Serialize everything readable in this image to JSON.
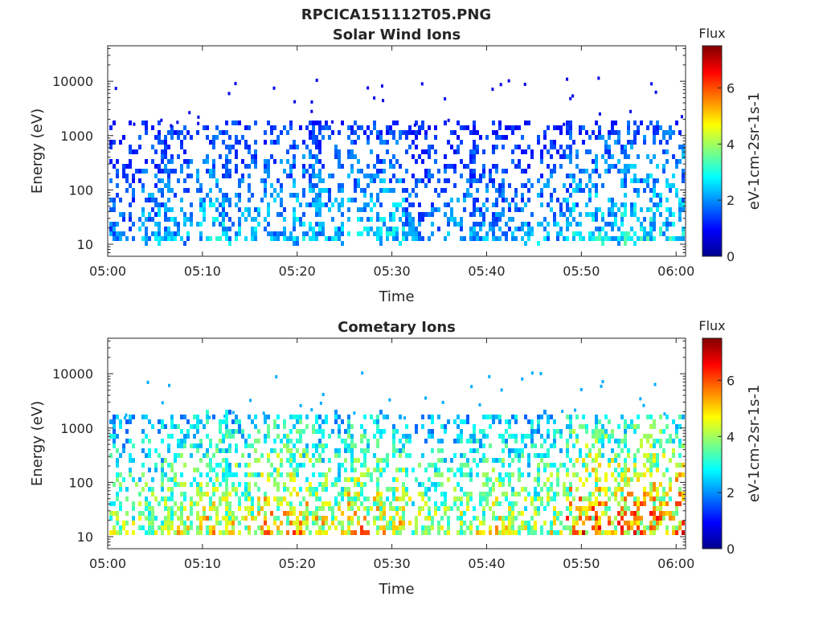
{
  "figure": {
    "title": "RPCICA151112T05.PNG"
  },
  "chart_data": [
    {
      "type": "heatmap",
      "title": "Solar Wind Ions",
      "xlabel": "Time",
      "ylabel": "Energy (eV)",
      "x_ticks": [
        "05:00",
        "05:10",
        "05:20",
        "05:30",
        "05:40",
        "05:50",
        "06:00"
      ],
      "xlim": [
        "05:00",
        "06:01"
      ],
      "y_scale": "log",
      "y_ticks": [
        "10",
        "100",
        "1000",
        "10000"
      ],
      "ylim": [
        6,
        45000
      ],
      "colorbar": {
        "title": "Flux",
        "label": "eV-1cm-2sr-1s-1",
        "ticks": [
          "0",
          "2",
          "4",
          "6"
        ],
        "range": [
          0,
          7.5
        ],
        "colormap": "jet"
      },
      "activity_bursts": [
        {
          "time": "05:01",
          "level": 2.2
        },
        {
          "time": "05:05",
          "level": 2.6
        },
        {
          "time": "05:07",
          "level": 2.8
        },
        {
          "time": "05:11",
          "level": 3.0
        },
        {
          "time": "05:14",
          "level": 2.8
        },
        {
          "time": "05:18",
          "level": 2.8
        },
        {
          "time": "05:21",
          "level": 2.9
        },
        {
          "time": "05:23",
          "level": 2.8
        },
        {
          "time": "05:27",
          "level": 2.9
        },
        {
          "time": "05:30",
          "level": 3.0
        },
        {
          "time": "05:33",
          "level": 2.4
        },
        {
          "time": "05:37",
          "level": 2.5
        },
        {
          "time": "05:40",
          "level": 2.5
        },
        {
          "time": "05:43",
          "level": 2.5
        },
        {
          "time": "05:47",
          "level": 2.7
        },
        {
          "time": "05:50",
          "level": 3.0
        },
        {
          "time": "05:53",
          "level": 3.2
        },
        {
          "time": "05:56",
          "level": 3.3
        },
        {
          "time": "05:59",
          "level": 3.2
        }
      ]
    },
    {
      "type": "heatmap",
      "title": "Cometary Ions",
      "xlabel": "Time",
      "ylabel": "Energy (eV)",
      "x_ticks": [
        "05:00",
        "05:10",
        "05:20",
        "05:30",
        "05:40",
        "05:50",
        "06:00"
      ],
      "xlim": [
        "05:00",
        "06:01"
      ],
      "y_scale": "log",
      "y_ticks": [
        "10",
        "100",
        "1000",
        "10000"
      ],
      "ylim": [
        6,
        45000
      ],
      "colorbar": {
        "title": "Flux",
        "label": "eV-1cm-2sr-1s-1",
        "ticks": [
          "0",
          "2",
          "4",
          "6"
        ],
        "range": [
          0,
          7.5
        ],
        "colormap": "jet"
      },
      "activity_bursts": [
        {
          "time": "05:01",
          "level": 4.6
        },
        {
          "time": "05:05",
          "level": 4.8
        },
        {
          "time": "05:08",
          "level": 5.2
        },
        {
          "time": "05:11",
          "level": 5.6
        },
        {
          "time": "05:14",
          "level": 5.4
        },
        {
          "time": "05:18",
          "level": 5.9
        },
        {
          "time": "05:21",
          "level": 5.8
        },
        {
          "time": "05:24",
          "level": 5.2
        },
        {
          "time": "05:27",
          "level": 5.8
        },
        {
          "time": "05:30",
          "level": 5.4
        },
        {
          "time": "05:34",
          "level": 4.8
        },
        {
          "time": "05:38",
          "level": 5.0
        },
        {
          "time": "05:41",
          "level": 5.3
        },
        {
          "time": "05:44",
          "level": 5.0
        },
        {
          "time": "05:47",
          "level": 5.2
        },
        {
          "time": "05:50",
          "level": 6.4
        },
        {
          "time": "05:53",
          "level": 6.2
        },
        {
          "time": "05:56",
          "level": 6.3
        },
        {
          "time": "05:59",
          "level": 6.4
        }
      ]
    }
  ]
}
